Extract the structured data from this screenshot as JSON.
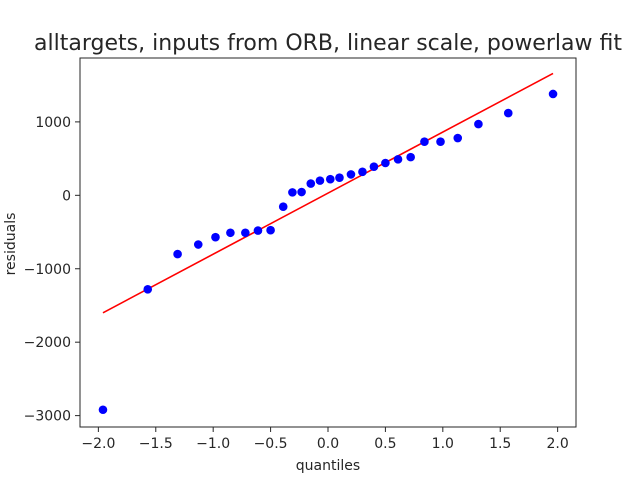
{
  "chart_data": {
    "type": "scatter",
    "title": "alltargets, inputs from ORB, linear scale, powerlaw fit",
    "xlabel": "quantiles",
    "ylabel": "residuals",
    "xlim": [
      -2.16,
      2.16
    ],
    "ylim": [
      -3155,
      1870
    ],
    "xticks": [
      -2.0,
      -1.5,
      -1.0,
      -0.5,
      0.0,
      0.5,
      1.0,
      1.5,
      2.0
    ],
    "xtick_labels": [
      "−2.0",
      "−1.5",
      "−1.0",
      "−0.5",
      "0.0",
      "0.5",
      "1.0",
      "1.5",
      "2.0"
    ],
    "yticks": [
      -3000,
      -2000,
      -1000,
      0,
      1000
    ],
    "ytick_labels": [
      "−3000",
      "−2000",
      "−1000",
      "0",
      "1000"
    ],
    "grid": false,
    "legend": "none",
    "series": [
      {
        "marker_color": "#0000ff",
        "points": [
          [
            -1.96,
            -2920
          ],
          [
            -1.57,
            -1280
          ],
          [
            -1.31,
            -800
          ],
          [
            -1.13,
            -670
          ],
          [
            -0.98,
            -570
          ],
          [
            -0.85,
            -510
          ],
          [
            -0.72,
            -510
          ],
          [
            -0.61,
            -480
          ],
          [
            -0.5,
            -475
          ],
          [
            -0.39,
            -155
          ],
          [
            -0.31,
            40
          ],
          [
            -0.23,
            45
          ],
          [
            -0.15,
            160
          ],
          [
            -0.07,
            200
          ],
          [
            0.02,
            220
          ],
          [
            0.1,
            240
          ],
          [
            0.2,
            285
          ],
          [
            0.3,
            320
          ],
          [
            0.4,
            390
          ],
          [
            0.5,
            440
          ],
          [
            0.61,
            490
          ],
          [
            0.72,
            520
          ],
          [
            0.84,
            730
          ],
          [
            0.98,
            730
          ],
          [
            1.13,
            780
          ],
          [
            1.31,
            970
          ],
          [
            1.57,
            1120
          ],
          [
            1.96,
            1380
          ]
        ]
      }
    ],
    "fit_line": {
      "color": "#ff0000",
      "points": [
        [
          -1.96,
          -1600
        ],
        [
          1.96,
          1660
        ]
      ]
    }
  }
}
